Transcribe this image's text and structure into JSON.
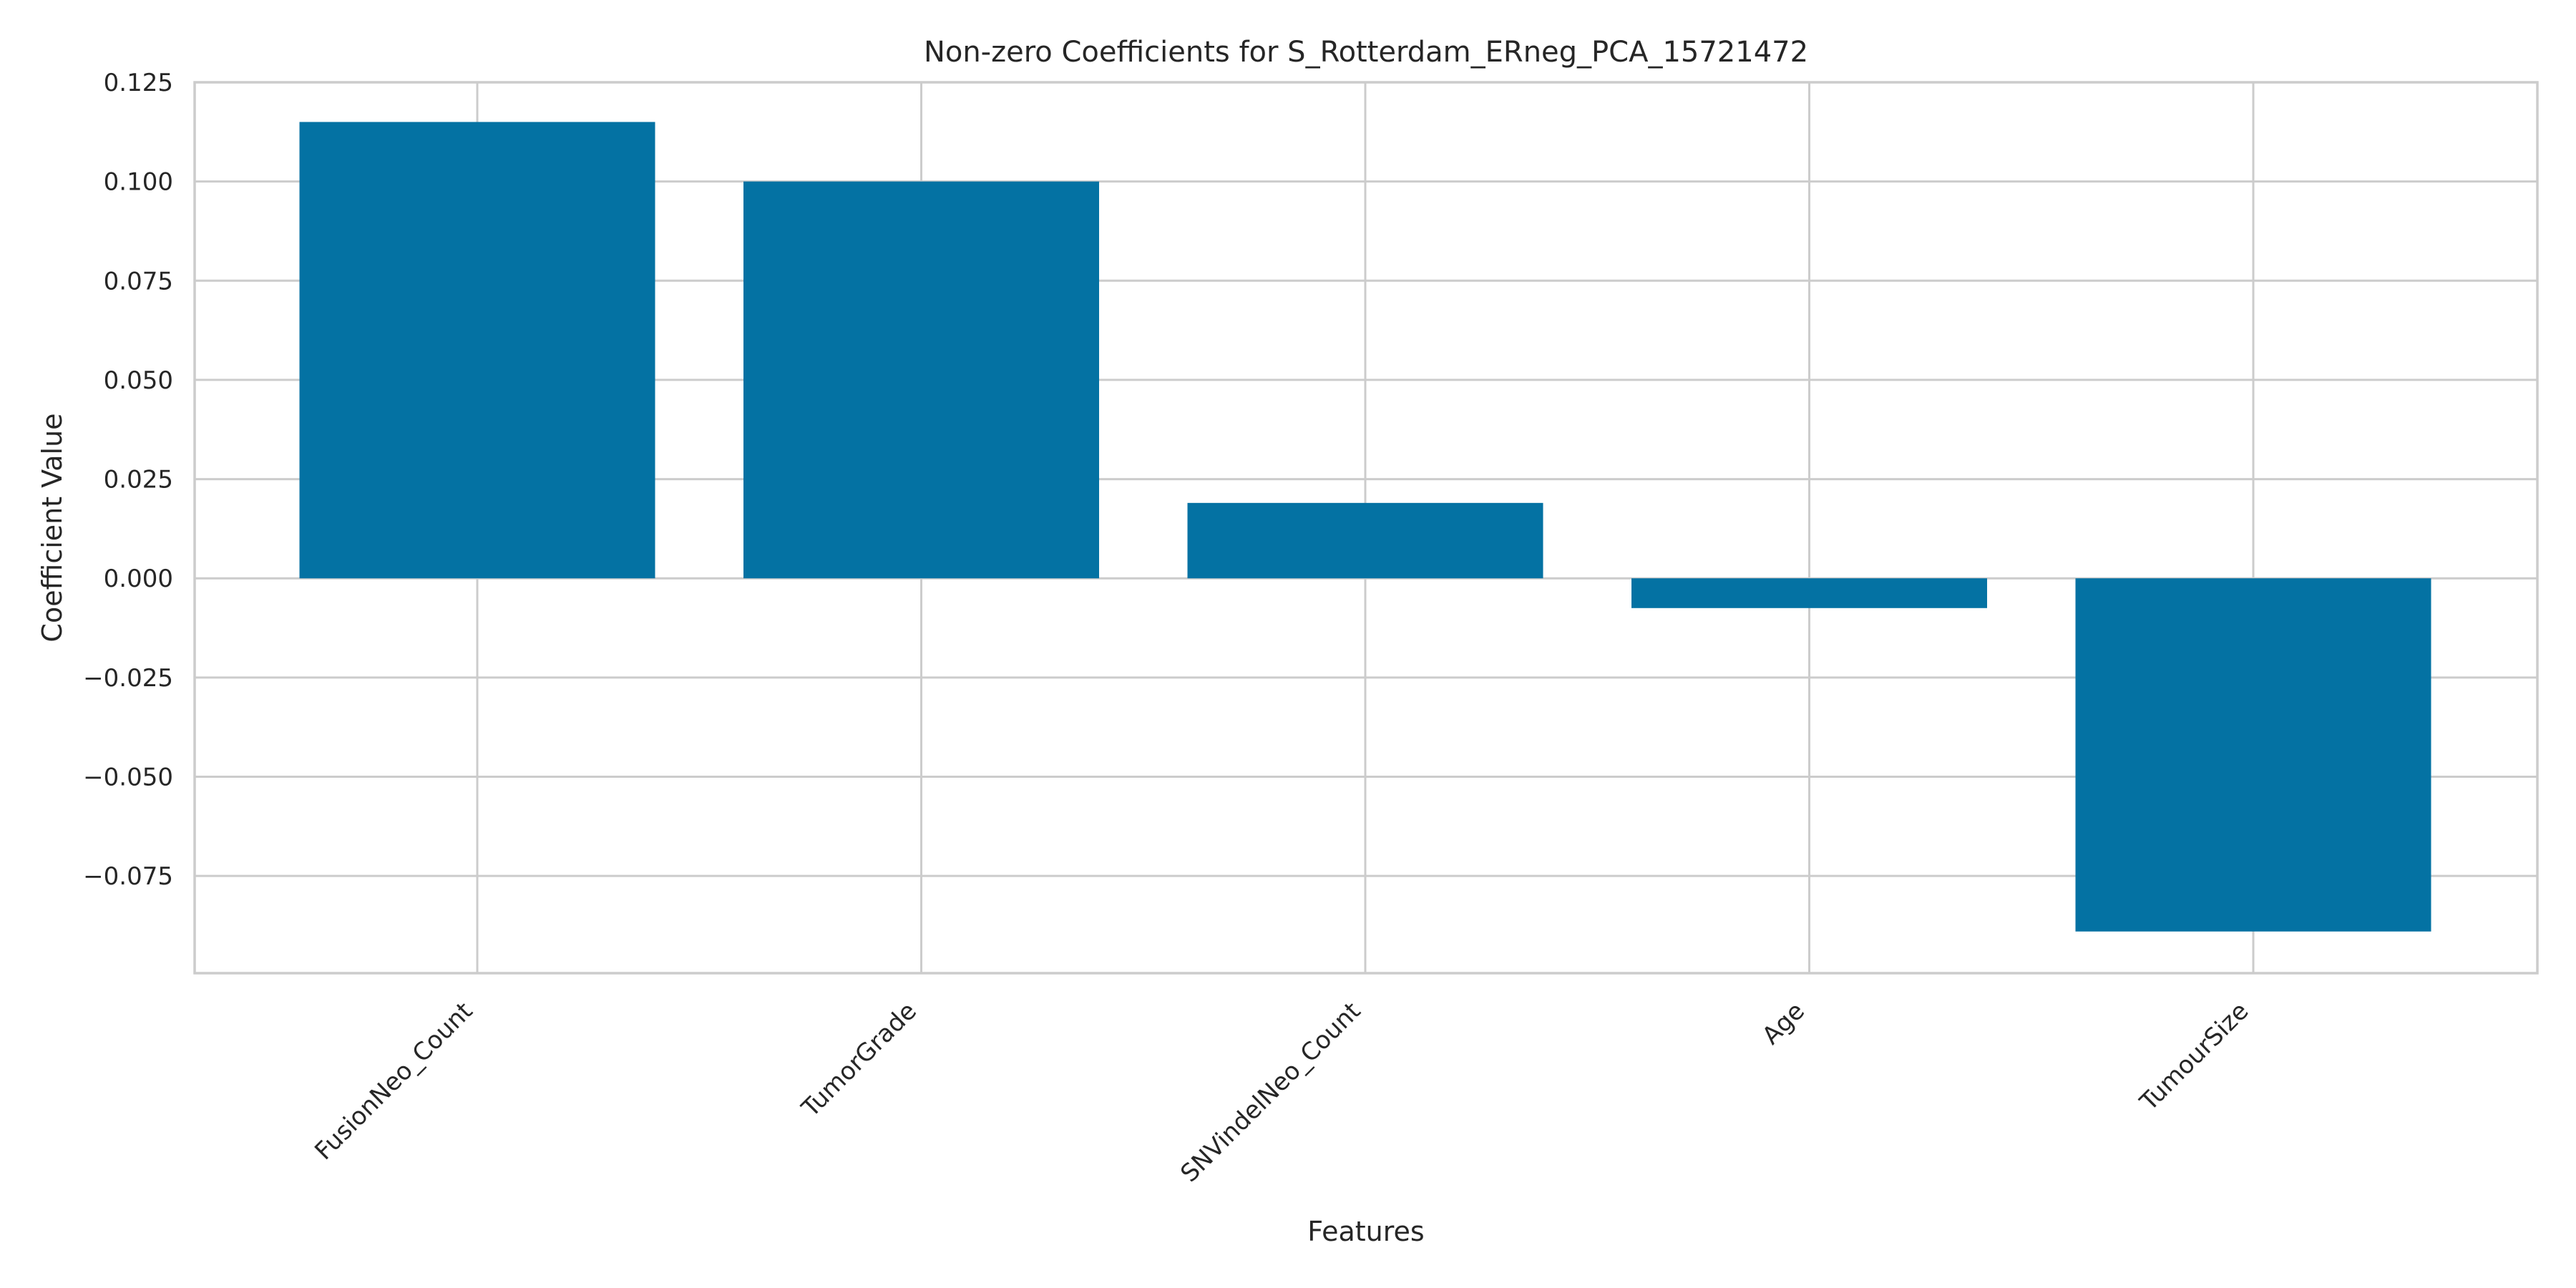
{
  "chart_data": {
    "type": "bar",
    "title": "Non-zero Coefficients for S_Rotterdam_ERneg_PCA_15721472",
    "xlabel": "Features",
    "ylabel": "Coefficient Value",
    "categories": [
      "FusionNeo_Count",
      "TumorGrade",
      "SNVindelNeo_Count",
      "Age",
      "TumourSize"
    ],
    "values": [
      0.115,
      0.1,
      0.019,
      -0.0075,
      -0.089
    ],
    "ylim": [
      -0.0995,
      0.125
    ],
    "yticks": [
      0.125,
      0.1,
      0.075,
      0.05,
      0.025,
      0.0,
      -0.025,
      -0.05,
      -0.075
    ],
    "ytick_labels": [
      "0.125",
      "0.100",
      "0.075",
      "0.050",
      "0.025",
      "0.000",
      "−0.025",
      "−0.050",
      "−0.075"
    ],
    "grid": true,
    "bar_color": "#0472a3",
    "grid_color": "#cccccc"
  }
}
